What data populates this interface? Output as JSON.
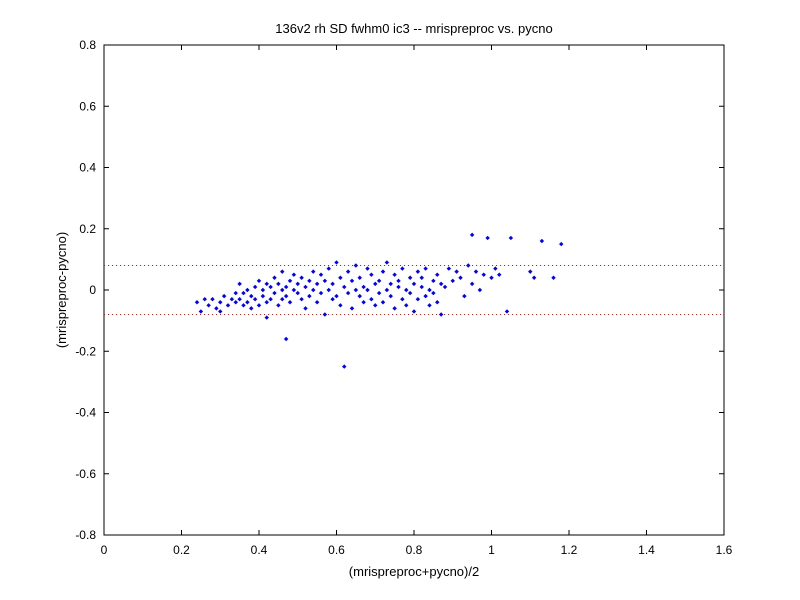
{
  "chart_data": {
    "type": "scatter",
    "title": "136v2 rh SD fwhm0 ic3 -- mrispreproc vs. pycno",
    "xlabel": "(mrispreproc+pycno)/2",
    "ylabel": "(mrispreproc-pycno)",
    "xlim": [
      0,
      1.6
    ],
    "ylim": [
      -0.8,
      0.8
    ],
    "xticks": [
      0,
      0.2,
      0.4,
      0.6,
      0.8,
      1,
      1.2,
      1.4,
      1.6
    ],
    "xtick_labels": [
      "0",
      "0.2",
      "0.4",
      "0.6",
      "0.8",
      "1",
      "1.2",
      "1.4",
      "1.6"
    ],
    "yticks": [
      0.8,
      0.6,
      0.4,
      0.2,
      0,
      -0.2,
      -0.4,
      -0.6,
      -0.8
    ],
    "ytick_labels": [
      "0.8",
      "0.6",
      "0.4",
      "0.2",
      "0",
      "-0.2",
      "-0.4",
      "-0.6",
      "-0.8"
    ],
    "grid": false,
    "legend": "none",
    "reference_lines": [
      {
        "y": 0.08,
        "style": "dotted",
        "color": "#ff0000"
      },
      {
        "y": -0.08,
        "style": "dotted",
        "color": "#ff0000"
      }
    ],
    "series_color": "#0000ff",
    "points": [
      [
        0.24,
        -0.04
      ],
      [
        0.25,
        -0.07
      ],
      [
        0.26,
        -0.03
      ],
      [
        0.27,
        -0.05
      ],
      [
        0.28,
        -0.03
      ],
      [
        0.29,
        -0.06
      ],
      [
        0.3,
        -0.04
      ],
      [
        0.3,
        -0.07
      ],
      [
        0.31,
        -0.02
      ],
      [
        0.32,
        -0.05
      ],
      [
        0.33,
        -0.03
      ],
      [
        0.34,
        -0.01
      ],
      [
        0.34,
        -0.04
      ],
      [
        0.35,
        0.02
      ],
      [
        0.35,
        -0.03
      ],
      [
        0.36,
        -0.05
      ],
      [
        0.36,
        -0.01
      ],
      [
        0.37,
        0.0
      ],
      [
        0.37,
        -0.04
      ],
      [
        0.38,
        -0.02
      ],
      [
        0.38,
        -0.06
      ],
      [
        0.39,
        0.01
      ],
      [
        0.39,
        -0.03
      ],
      [
        0.4,
        0.03
      ],
      [
        0.4,
        -0.05
      ],
      [
        0.41,
        0.0
      ],
      [
        0.41,
        -0.02
      ],
      [
        0.42,
        0.02
      ],
      [
        0.42,
        -0.04
      ],
      [
        0.42,
        -0.09
      ],
      [
        0.43,
        0.01
      ],
      [
        0.43,
        -0.03
      ],
      [
        0.44,
        0.04
      ],
      [
        0.44,
        -0.01
      ],
      [
        0.45,
        0.02
      ],
      [
        0.45,
        -0.05
      ],
      [
        0.46,
        0.0
      ],
      [
        0.46,
        -0.03
      ],
      [
        0.46,
        0.06
      ],
      [
        0.47,
        0.01
      ],
      [
        0.47,
        -0.02
      ],
      [
        0.47,
        -0.16
      ],
      [
        0.48,
        0.03
      ],
      [
        0.48,
        -0.04
      ],
      [
        0.49,
        0.0
      ],
      [
        0.49,
        0.05
      ],
      [
        0.5,
        -0.01
      ],
      [
        0.5,
        0.02
      ],
      [
        0.51,
        -0.03
      ],
      [
        0.51,
        0.04
      ],
      [
        0.52,
        0.01
      ],
      [
        0.52,
        -0.06
      ],
      [
        0.53,
        0.03
      ],
      [
        0.53,
        -0.02
      ],
      [
        0.54,
        0.06
      ],
      [
        0.54,
        0.0
      ],
      [
        0.55,
        -0.04
      ],
      [
        0.55,
        0.02
      ],
      [
        0.56,
        0.05
      ],
      [
        0.56,
        -0.01
      ],
      [
        0.57,
        0.03
      ],
      [
        0.57,
        -0.08
      ],
      [
        0.58,
        0.0
      ],
      [
        0.58,
        0.07
      ],
      [
        0.59,
        -0.03
      ],
      [
        0.59,
        0.02
      ],
      [
        0.6,
        0.09
      ],
      [
        0.6,
        -0.02
      ],
      [
        0.61,
        0.04
      ],
      [
        0.61,
        -0.05
      ],
      [
        0.62,
        0.01
      ],
      [
        0.62,
        -0.25
      ],
      [
        0.63,
        0.06
      ],
      [
        0.63,
        -0.01
      ],
      [
        0.64,
        0.03
      ],
      [
        0.64,
        -0.06
      ],
      [
        0.65,
        0.0
      ],
      [
        0.65,
        0.08
      ],
      [
        0.66,
        -0.02
      ],
      [
        0.66,
        0.04
      ],
      [
        0.67,
        0.01
      ],
      [
        0.67,
        -0.04
      ],
      [
        0.68,
        0.07
      ],
      [
        0.68,
        0.0
      ],
      [
        0.69,
        -0.03
      ],
      [
        0.69,
        0.05
      ],
      [
        0.7,
        0.02
      ],
      [
        0.7,
        -0.05
      ],
      [
        0.71,
        0.03
      ],
      [
        0.71,
        -0.01
      ],
      [
        0.72,
        0.06
      ],
      [
        0.72,
        -0.04
      ],
      [
        0.73,
        0.0
      ],
      [
        0.73,
        0.09
      ],
      [
        0.74,
        0.02
      ],
      [
        0.74,
        -0.02
      ],
      [
        0.75,
        0.05
      ],
      [
        0.75,
        -0.06
      ],
      [
        0.76,
        0.01
      ],
      [
        0.76,
        0.03
      ],
      [
        0.77,
        -0.03
      ],
      [
        0.77,
        0.07
      ],
      [
        0.78,
        0.0
      ],
      [
        0.78,
        -0.05
      ],
      [
        0.79,
        0.04
      ],
      [
        0.79,
        -0.01
      ],
      [
        0.8,
        0.02
      ],
      [
        0.8,
        -0.07
      ],
      [
        0.81,
        0.06
      ],
      [
        0.81,
        -0.03
      ],
      [
        0.82,
        0.01
      ],
      [
        0.82,
        0.04
      ],
      [
        0.83,
        -0.02
      ],
      [
        0.83,
        0.07
      ],
      [
        0.84,
        0.0
      ],
      [
        0.84,
        -0.05
      ],
      [
        0.85,
        0.03
      ],
      [
        0.85,
        -0.01
      ],
      [
        0.86,
        0.05
      ],
      [
        0.86,
        -0.04
      ],
      [
        0.87,
        0.02
      ],
      [
        0.87,
        -0.08
      ],
      [
        0.88,
        0.01
      ],
      [
        0.89,
        0.07
      ],
      [
        0.9,
        0.03
      ],
      [
        0.91,
        0.06
      ],
      [
        0.92,
        0.04
      ],
      [
        0.93,
        -0.02
      ],
      [
        0.94,
        0.08
      ],
      [
        0.95,
        0.02
      ],
      [
        0.95,
        0.18
      ],
      [
        0.96,
        0.06
      ],
      [
        0.97,
        0.0
      ],
      [
        0.98,
        0.05
      ],
      [
        0.99,
        0.17
      ],
      [
        1.0,
        0.04
      ],
      [
        1.01,
        0.07
      ],
      [
        1.02,
        0.05
      ],
      [
        1.04,
        -0.07
      ],
      [
        1.05,
        0.17
      ],
      [
        1.1,
        0.06
      ],
      [
        1.11,
        0.04
      ],
      [
        1.13,
        0.16
      ],
      [
        1.16,
        0.04
      ],
      [
        1.18,
        0.15
      ]
    ]
  }
}
